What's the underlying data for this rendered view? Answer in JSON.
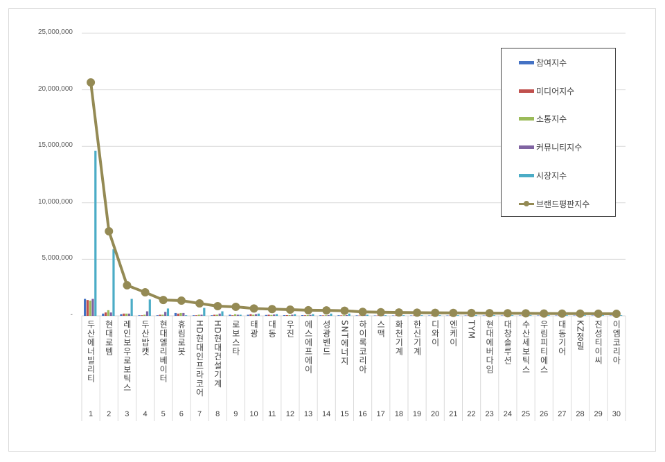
{
  "chart_data": {
    "type": "bar+line",
    "title": "",
    "xlabel": "",
    "ylabel": "",
    "ylim": [
      0,
      25000000
    ],
    "yticks": [
      "-",
      "5,000,000",
      "10,000,000",
      "15,000,000",
      "20,000,000",
      "25,000,000"
    ],
    "ytick_values": [
      0,
      5000000,
      10000000,
      15000000,
      20000000,
      25000000
    ],
    "grid": true,
    "legend_position": "top-right",
    "categories": [
      "두산에너빌리티",
      "현대로템",
      "레인보우로보틱스",
      "두산밥캣",
      "현대엘리베이터",
      "휴림로봇",
      "HD현대인프라코어",
      "HD현대건설기계",
      "로보스타",
      "태광",
      "대동",
      "우진",
      "에스에프에이",
      "성광벤드",
      "SNT에너지",
      "하이록코리아",
      "스맥",
      "화천기계",
      "한신기계",
      "디와이",
      "엔케이",
      "TYM",
      "현대에버다임",
      "대창솔루션",
      "수산세보틱스",
      "우림피티에스",
      "대동기어",
      "KZ정밀",
      "진성티이씨",
      "이엠코리아"
    ],
    "ranks": [
      "1",
      "2",
      "3",
      "4",
      "5",
      "6",
      "7",
      "8",
      "9",
      "10",
      "11",
      "12",
      "13",
      "14",
      "15",
      "16",
      "17",
      "18",
      "19",
      "20",
      "21",
      "22",
      "23",
      "24",
      "25",
      "26",
      "27",
      "28",
      "29",
      "30"
    ],
    "series": [
      {
        "name": "참여지수",
        "type": "bar",
        "color": "#4472c4",
        "values": [
          1500000,
          200000,
          150000,
          50000,
          50000,
          250000,
          50000,
          50000,
          100000,
          100000,
          80000,
          60000,
          60000,
          50000,
          50000,
          40000,
          30000,
          30000,
          30000,
          30000,
          30000,
          30000,
          30000,
          30000,
          30000,
          30000,
          30000,
          30000,
          30000,
          30000
        ]
      },
      {
        "name": "미디어지수",
        "type": "bar",
        "color": "#c0504d",
        "values": [
          1400000,
          300000,
          200000,
          50000,
          100000,
          200000,
          50000,
          100000,
          50000,
          150000,
          100000,
          60000,
          50000,
          40000,
          40000,
          30000,
          30000,
          30000,
          30000,
          30000,
          30000,
          30000,
          30000,
          30000,
          30000,
          30000,
          30000,
          30000,
          30000,
          30000
        ]
      },
      {
        "name": "소통지수",
        "type": "bar",
        "color": "#9bbb59",
        "values": [
          1350000,
          500000,
          200000,
          100000,
          100000,
          250000,
          100000,
          100000,
          150000,
          100000,
          80000,
          60000,
          60000,
          50000,
          50000,
          40000,
          30000,
          30000,
          30000,
          30000,
          30000,
          30000,
          30000,
          30000,
          30000,
          30000,
          30000,
          30000,
          30000,
          30000
        ]
      },
      {
        "name": "커뮤니티지수",
        "type": "bar",
        "color": "#8064a2",
        "values": [
          1500000,
          300000,
          200000,
          400000,
          350000,
          250000,
          100000,
          200000,
          100000,
          150000,
          120000,
          100000,
          80000,
          60000,
          60000,
          50000,
          40000,
          40000,
          40000,
          40000,
          40000,
          40000,
          40000,
          40000,
          40000,
          40000,
          40000,
          40000,
          40000,
          40000
        ]
      },
      {
        "name": "시장지수",
        "type": "bar",
        "color": "#4bacc6",
        "values": [
          14600000,
          5900000,
          1500000,
          1450000,
          650000,
          50000,
          700000,
          400000,
          100000,
          200000,
          150000,
          150000,
          150000,
          200000,
          200000,
          100000,
          50000,
          50000,
          50000,
          50000,
          50000,
          50000,
          50000,
          50000,
          50000,
          50000,
          50000,
          50000,
          50000,
          50000
        ]
      },
      {
        "name": "브랜드평판지수",
        "type": "line",
        "color": "#948a54",
        "values": [
          20650000,
          7480000,
          2700000,
          2080000,
          1400000,
          1350000,
          1100000,
          860000,
          800000,
          650000,
          600000,
          550000,
          500000,
          480000,
          450000,
          350000,
          320000,
          300000,
          280000,
          270000,
          260000,
          250000,
          240000,
          230000,
          220000,
          210000,
          200000,
          200000,
          190000,
          180000
        ]
      }
    ]
  }
}
